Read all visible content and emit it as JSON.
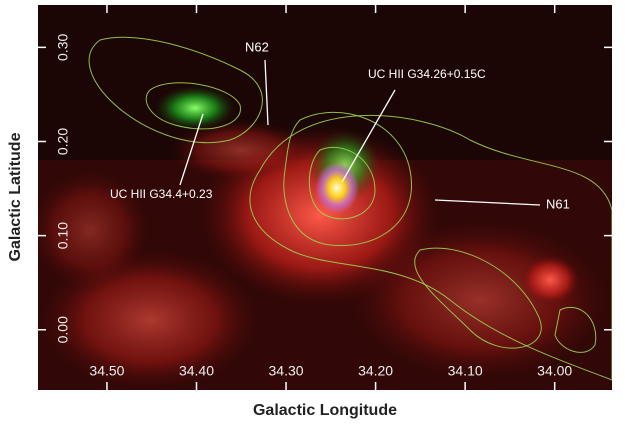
{
  "chart_data": {
    "type": "image",
    "xlabel": "Galactic Longitude",
    "ylabel": "Galactic Latitude",
    "xlim": [
      34.577,
      33.936
    ],
    "ylim": [
      -0.064,
      0.345
    ],
    "xticks": [
      {
        "value": 34.5,
        "label": "34.50"
      },
      {
        "value": 34.4,
        "label": "34.40"
      },
      {
        "value": 34.3,
        "label": "34.30"
      },
      {
        "value": 34.2,
        "label": "34.20"
      },
      {
        "value": 34.1,
        "label": "34.10"
      },
      {
        "value": 34.0,
        "label": "34.00"
      }
    ],
    "yticks": [
      {
        "value": 0.0,
        "label": "0.00"
      },
      {
        "value": 0.1,
        "label": "0.10"
      },
      {
        "value": 0.2,
        "label": "0.20"
      },
      {
        "value": 0.3,
        "label": "0.30"
      }
    ],
    "annotations": [
      "N62",
      "UC HII G34.26+0.15C",
      "UC HII G34.4+0.23",
      "N61"
    ]
  }
}
